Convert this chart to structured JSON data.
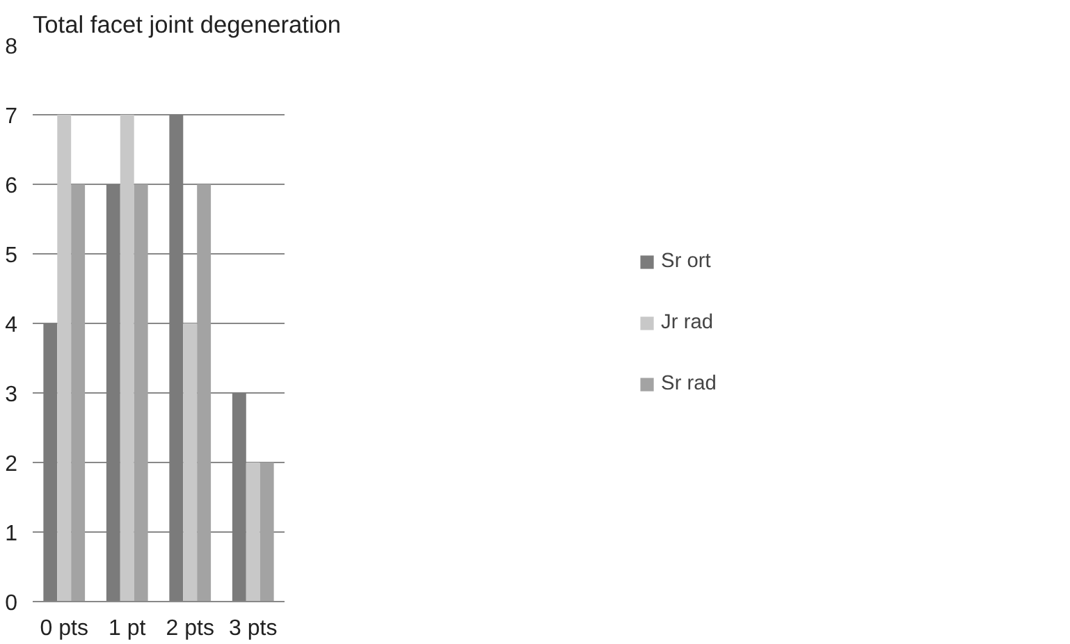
{
  "chart_data": {
    "type": "bar",
    "title": "Total facet joint degeneration",
    "categories": [
      "0 pts",
      "1 pt",
      "2 pts",
      "3 pts"
    ],
    "series": [
      {
        "name": "Sr ort",
        "color": "#7b7b7b",
        "values": [
          4,
          6,
          7,
          3
        ]
      },
      {
        "name": "Jr rad",
        "color": "#c8c8c8",
        "values": [
          7,
          7,
          4,
          2
        ]
      },
      {
        "name": "Sr rad",
        "color": "#a3a3a3",
        "values": [
          6,
          6,
          6,
          2
        ]
      }
    ],
    "ylim": [
      0,
      8
    ],
    "yticks": [
      0,
      1,
      2,
      3,
      4,
      5,
      6,
      7,
      8
    ],
    "grid": "y",
    "legend": "right"
  }
}
